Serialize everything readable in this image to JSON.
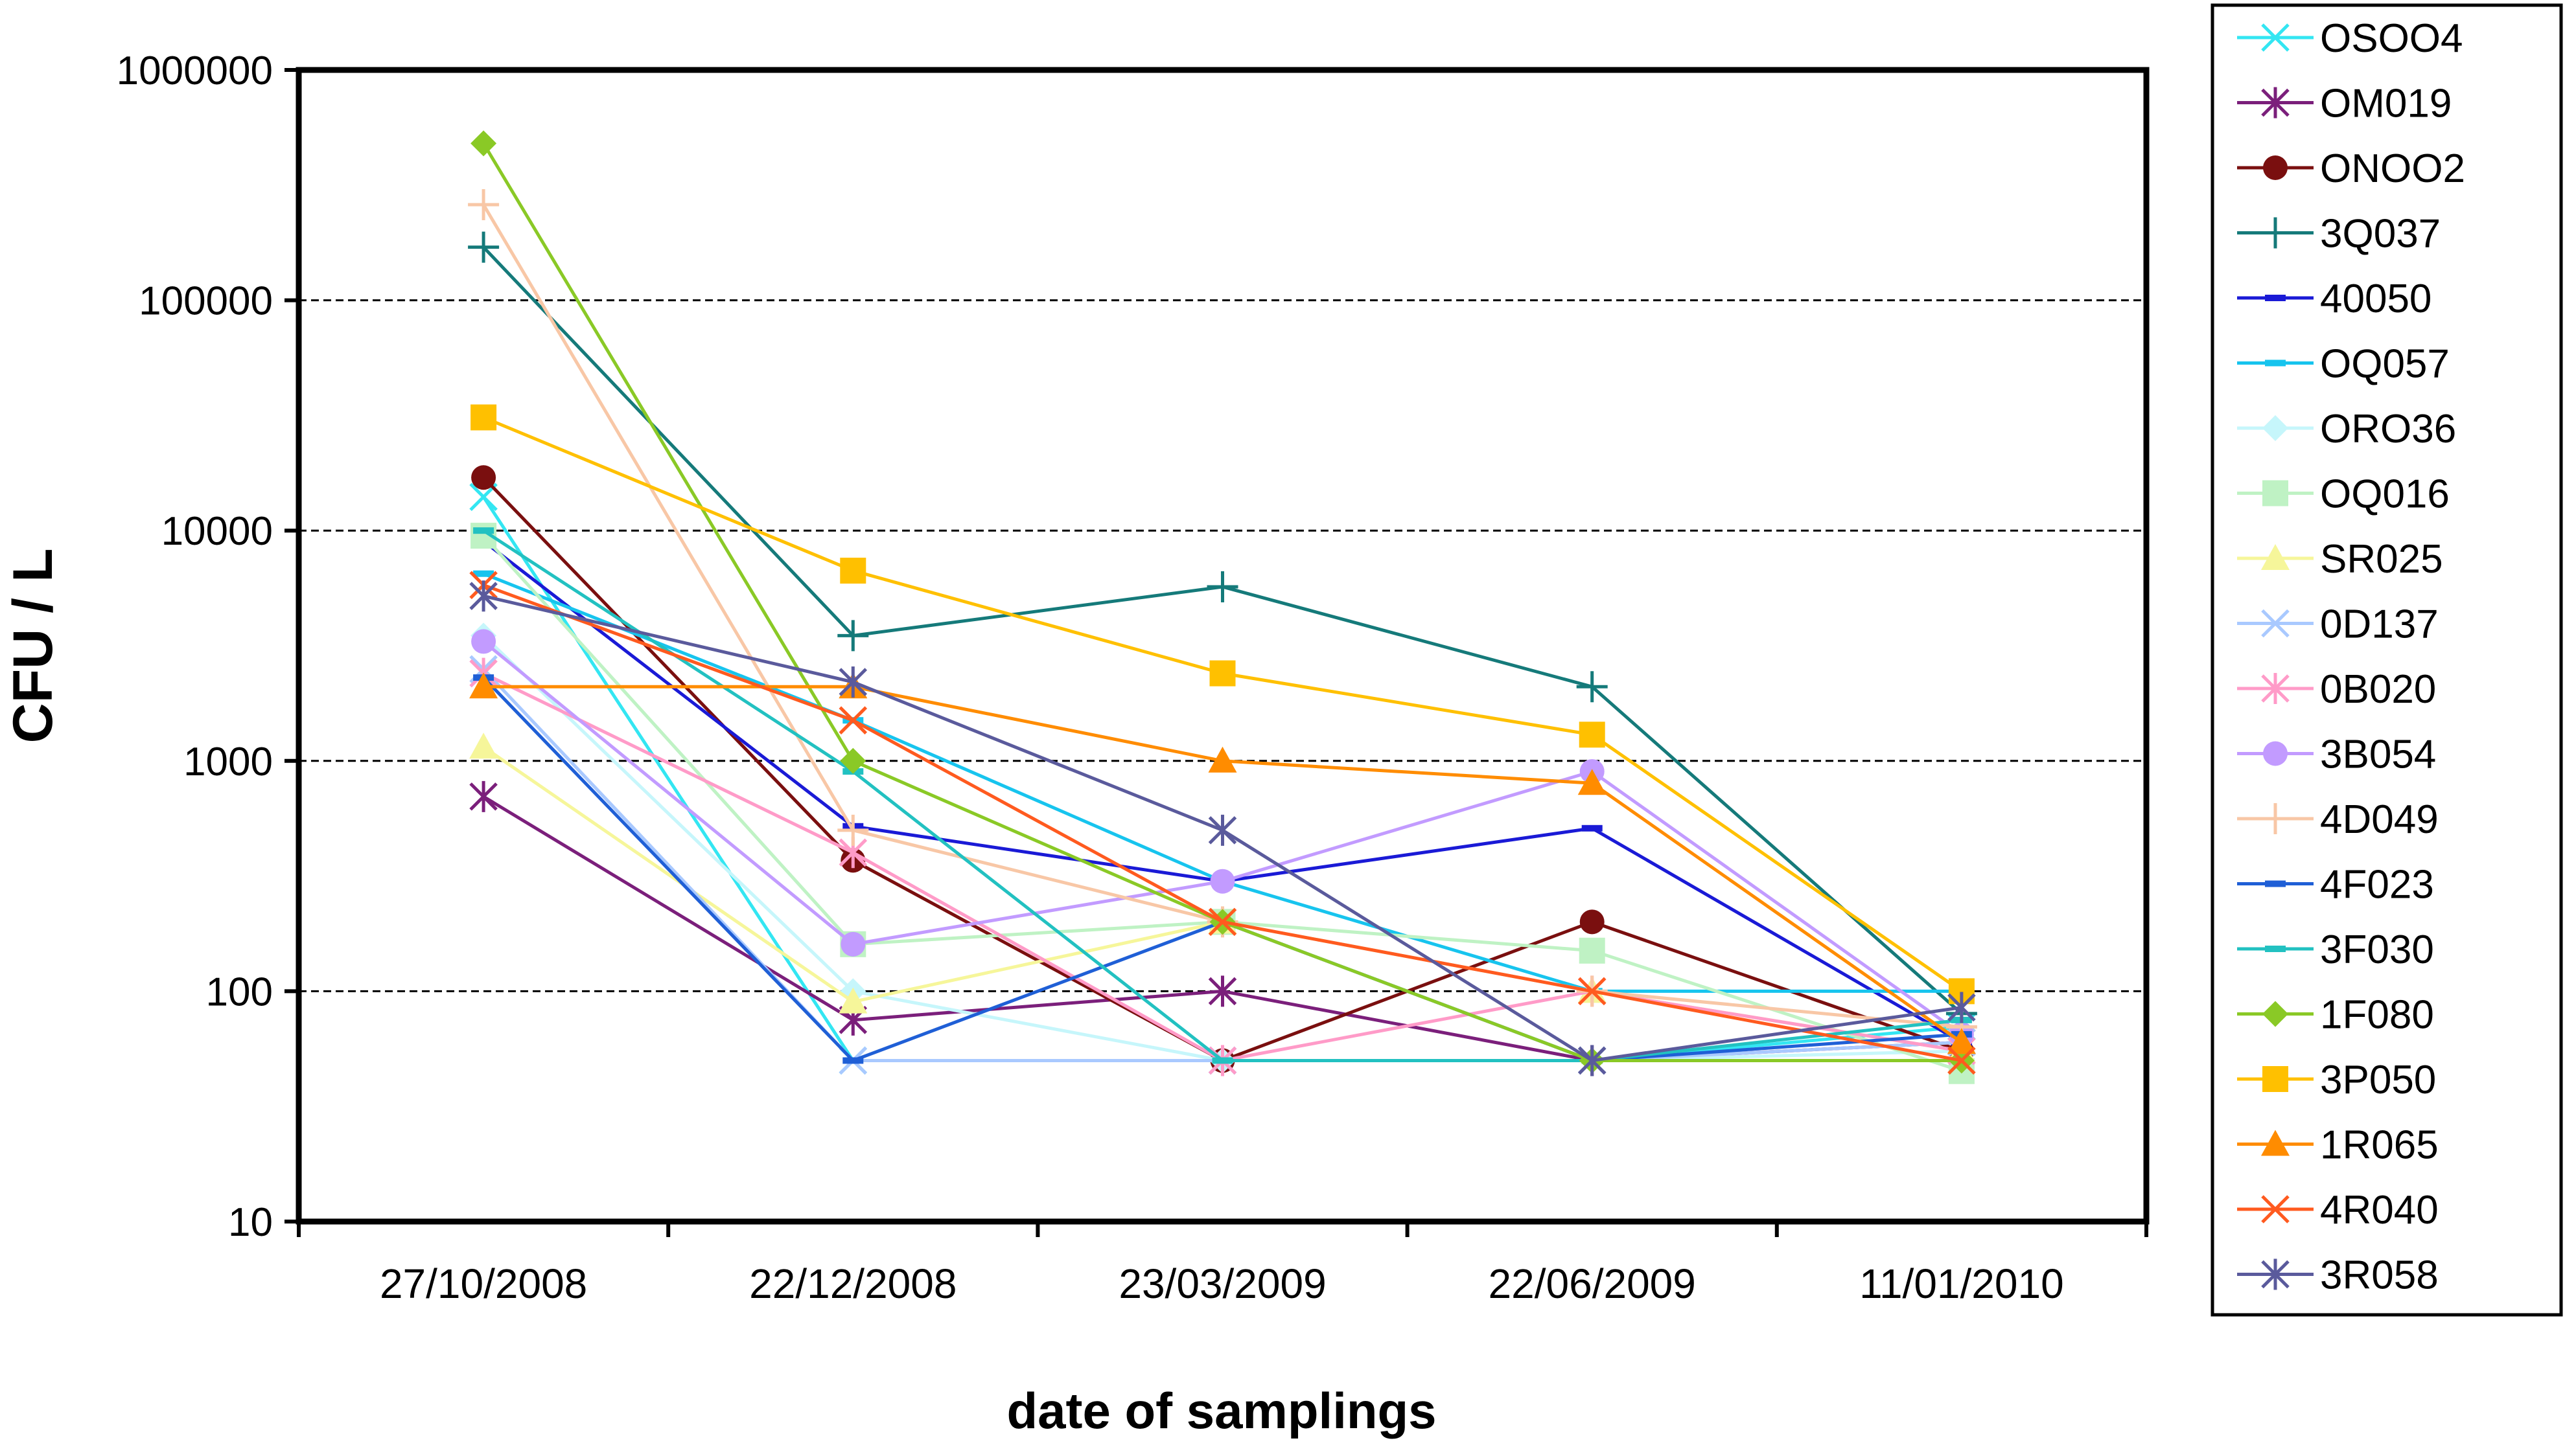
{
  "chart_data": {
    "type": "line",
    "y_scale": "log",
    "ylim": [
      10,
      1000000
    ],
    "y_ticks": [
      "1000000",
      "100000",
      "10000",
      "1000",
      "100",
      "10"
    ],
    "gridlines": [
      100000,
      10000,
      1000,
      100
    ],
    "xlabel": "date of samplings",
    "ylabel": "CFU / L",
    "categories": [
      "27/10/2008",
      "22/12/2008",
      "23/03/2009",
      "22/06/2009",
      "11/01/2010"
    ],
    "legend_position": "right",
    "series": [
      {
        "name": "OSOO4",
        "color": "#33e6f2",
        "marker": "x",
        "values": [
          14000,
          50,
          50,
          50,
          70
        ]
      },
      {
        "name": "OM019",
        "color": "#7b1f7b",
        "marker": "asterisk",
        "values": [
          700,
          75,
          100,
          50,
          60
        ]
      },
      {
        "name": "ONOO2",
        "color": "#7a0f0f",
        "marker": "circle",
        "values": [
          17000,
          370,
          50,
          200,
          55
        ]
      },
      {
        "name": "3Q037",
        "color": "#157a7a",
        "marker": "plus",
        "values": [
          170000,
          3500,
          5700,
          2100,
          80
        ]
      },
      {
        "name": "40050",
        "color": "#1a1ad6",
        "marker": "dash",
        "values": [
          9000,
          520,
          300,
          510,
          60
        ]
      },
      {
        "name": "OQ057",
        "color": "#17c4ee",
        "marker": "dash",
        "values": [
          6500,
          1500,
          300,
          100,
          100
        ]
      },
      {
        "name": "ORO36",
        "color": "#c6f6fb",
        "marker": "diamond",
        "values": [
          3500,
          100,
          50,
          50,
          55
        ]
      },
      {
        "name": "OQ016",
        "color": "#bff2c4",
        "marker": "square",
        "values": [
          9500,
          160,
          200,
          150,
          45
        ]
      },
      {
        "name": "SR025",
        "color": "#f6f69a",
        "marker": "triangle",
        "values": [
          1150,
          90,
          200,
          100,
          55
        ]
      },
      {
        "name": "0D137",
        "color": "#a9c9ff",
        "marker": "x",
        "values": [
          2500,
          50,
          50,
          50,
          60
        ]
      },
      {
        "name": "0B020",
        "color": "#ff9bc8",
        "marker": "asterisk",
        "values": [
          2400,
          400,
          50,
          100,
          55
        ]
      },
      {
        "name": "3B054",
        "color": "#c29bff",
        "marker": "circle",
        "values": [
          3300,
          160,
          300,
          900,
          65
        ]
      },
      {
        "name": "4D049",
        "color": "#f8c7a6",
        "marker": "plus",
        "values": [
          260000,
          500,
          200,
          100,
          70
        ]
      },
      {
        "name": "4F023",
        "color": "#1f5fd6",
        "marker": "dash",
        "values": [
          2300,
          50,
          200,
          50,
          65
        ]
      },
      {
        "name": "3F030",
        "color": "#22c1c1",
        "marker": "dash",
        "values": [
          10000,
          900,
          50,
          50,
          75
        ]
      },
      {
        "name": "1F080",
        "color": "#8ac926",
        "marker": "diamond",
        "values": [
          480000,
          1000,
          200,
          50,
          50
        ]
      },
      {
        "name": "3P050",
        "color": "#ffc000",
        "marker": "square",
        "values": [
          31000,
          6700,
          2400,
          1300,
          100
        ]
      },
      {
        "name": "1R065",
        "color": "#ff8c00",
        "marker": "triangle",
        "values": [
          2100,
          2100,
          1000,
          800,
          60
        ]
      },
      {
        "name": "4R040",
        "color": "#ff5a1f",
        "marker": "x",
        "values": [
          5800,
          1500,
          200,
          100,
          50
        ]
      },
      {
        "name": "3R058",
        "color": "#5a5a9c",
        "marker": "asterisk",
        "values": [
          5200,
          2200,
          500,
          50,
          85
        ]
      }
    ]
  }
}
